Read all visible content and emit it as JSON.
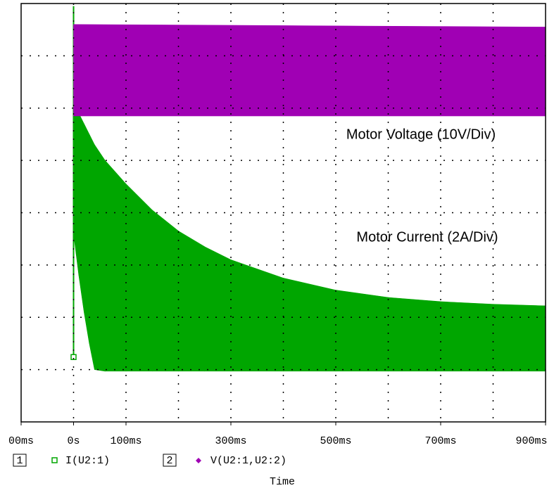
{
  "chart_data": {
    "type": "band",
    "annotations": [
      "Motor Voltage (10V/Div)",
      "Motor Current (2A/Div)"
    ],
    "xlabel": "Time",
    "xlim": [
      -100,
      900
    ],
    "xticks": [
      {
        "value": -100,
        "label": "00ms"
      },
      {
        "value": 0,
        "label": "0s"
      },
      {
        "value": 100,
        "label": "100ms"
      },
      {
        "value": 300,
        "label": "300ms"
      },
      {
        "value": 500,
        "label": "500ms"
      },
      {
        "value": 700,
        "label": "700ms"
      },
      {
        "value": 900,
        "label": "900ms"
      }
    ],
    "xgrid": [
      0,
      100,
      200,
      300,
      400,
      500,
      600,
      700,
      800
    ],
    "ylim": [
      0,
      8
    ],
    "ygrid": [
      1,
      2,
      3,
      4,
      5,
      6,
      7
    ],
    "grid": true,
    "series": [
      {
        "index": "1",
        "name": "I(U2:1)",
        "color": "#00a600",
        "marker": "square",
        "x": [
          0,
          5,
          10,
          20,
          30,
          40,
          60,
          100,
          150,
          200,
          250,
          300,
          400,
          500,
          600,
          700,
          800,
          900
        ],
        "upper": [
          5.9,
          5.95,
          5.9,
          5.7,
          5.5,
          5.3,
          5.0,
          4.55,
          4.05,
          3.65,
          3.35,
          3.1,
          2.75,
          2.52,
          2.38,
          2.3,
          2.25,
          2.22
        ],
        "lower": [
          3.6,
          3.2,
          2.8,
          2.1,
          1.5,
          1.0,
          0.97,
          0.97,
          0.97,
          0.97,
          0.97,
          0.97,
          0.97,
          0.97,
          0.97,
          0.97,
          0.97,
          0.97
        ],
        "marker_value": 1.24,
        "spike_peak": 7.95
      },
      {
        "index": "2",
        "name": "V(U2:1,U2:2)",
        "color": "#a000b4",
        "marker": "diamond",
        "x": [
          0,
          900
        ],
        "upper": [
          7.6,
          7.55
        ],
        "lower": [
          5.85,
          5.85
        ]
      }
    ]
  }
}
